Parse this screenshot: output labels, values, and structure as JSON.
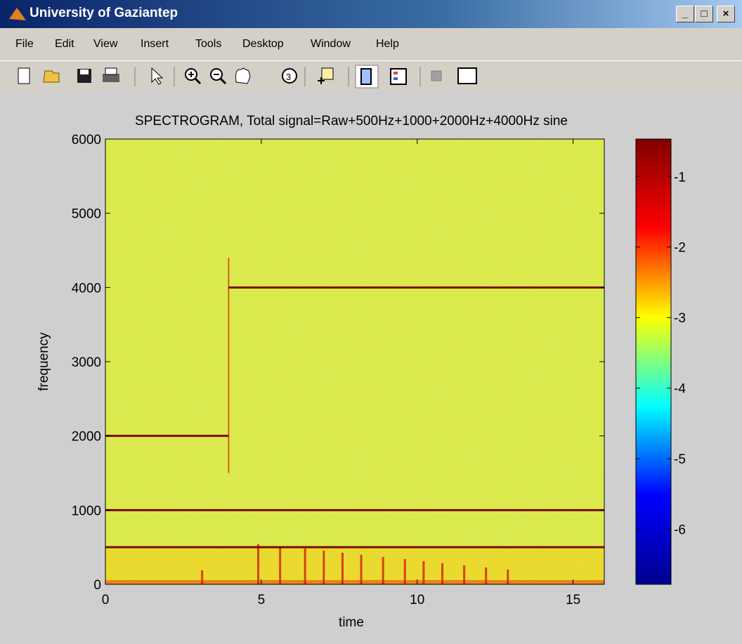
{
  "window": {
    "title": "University of Gaziantep",
    "menu": [
      "File",
      "Edit",
      "View",
      "Insert",
      "Tools",
      "Desktop",
      "Window",
      "Help"
    ]
  },
  "chart_data": {
    "type": "spectrogram",
    "title": "SPECTROGRAM, Total signal=Raw+500Hz+1000+2000Hz+4000Hz sine",
    "xlabel": "time",
    "ylabel": "frequency",
    "xlim": [
      0,
      16
    ],
    "xticks": [
      0,
      5,
      10,
      15
    ],
    "ylim": [
      0,
      6000
    ],
    "yticks": [
      0,
      1000,
      2000,
      3000,
      4000,
      5000,
      6000
    ],
    "tones": [
      {
        "freq": 500,
        "start": 0,
        "end": 16
      },
      {
        "freq": 1000,
        "start": 0,
        "end": 16
      },
      {
        "freq": 2000,
        "start": 0,
        "end": 3.95
      },
      {
        "freq": 4000,
        "start": 3.95,
        "end": 16
      }
    ],
    "tone_color": "#7a0a0a",
    "colorbar": {
      "lim": [
        -6.78,
        -0.47
      ],
      "ticks": [
        -6,
        -5,
        -4,
        -3,
        -2,
        -1
      ],
      "colormap": [
        "#00008f",
        "#0000ff",
        "#00ffff",
        "#ffff00",
        "#ff0000",
        "#800000"
      ]
    }
  }
}
